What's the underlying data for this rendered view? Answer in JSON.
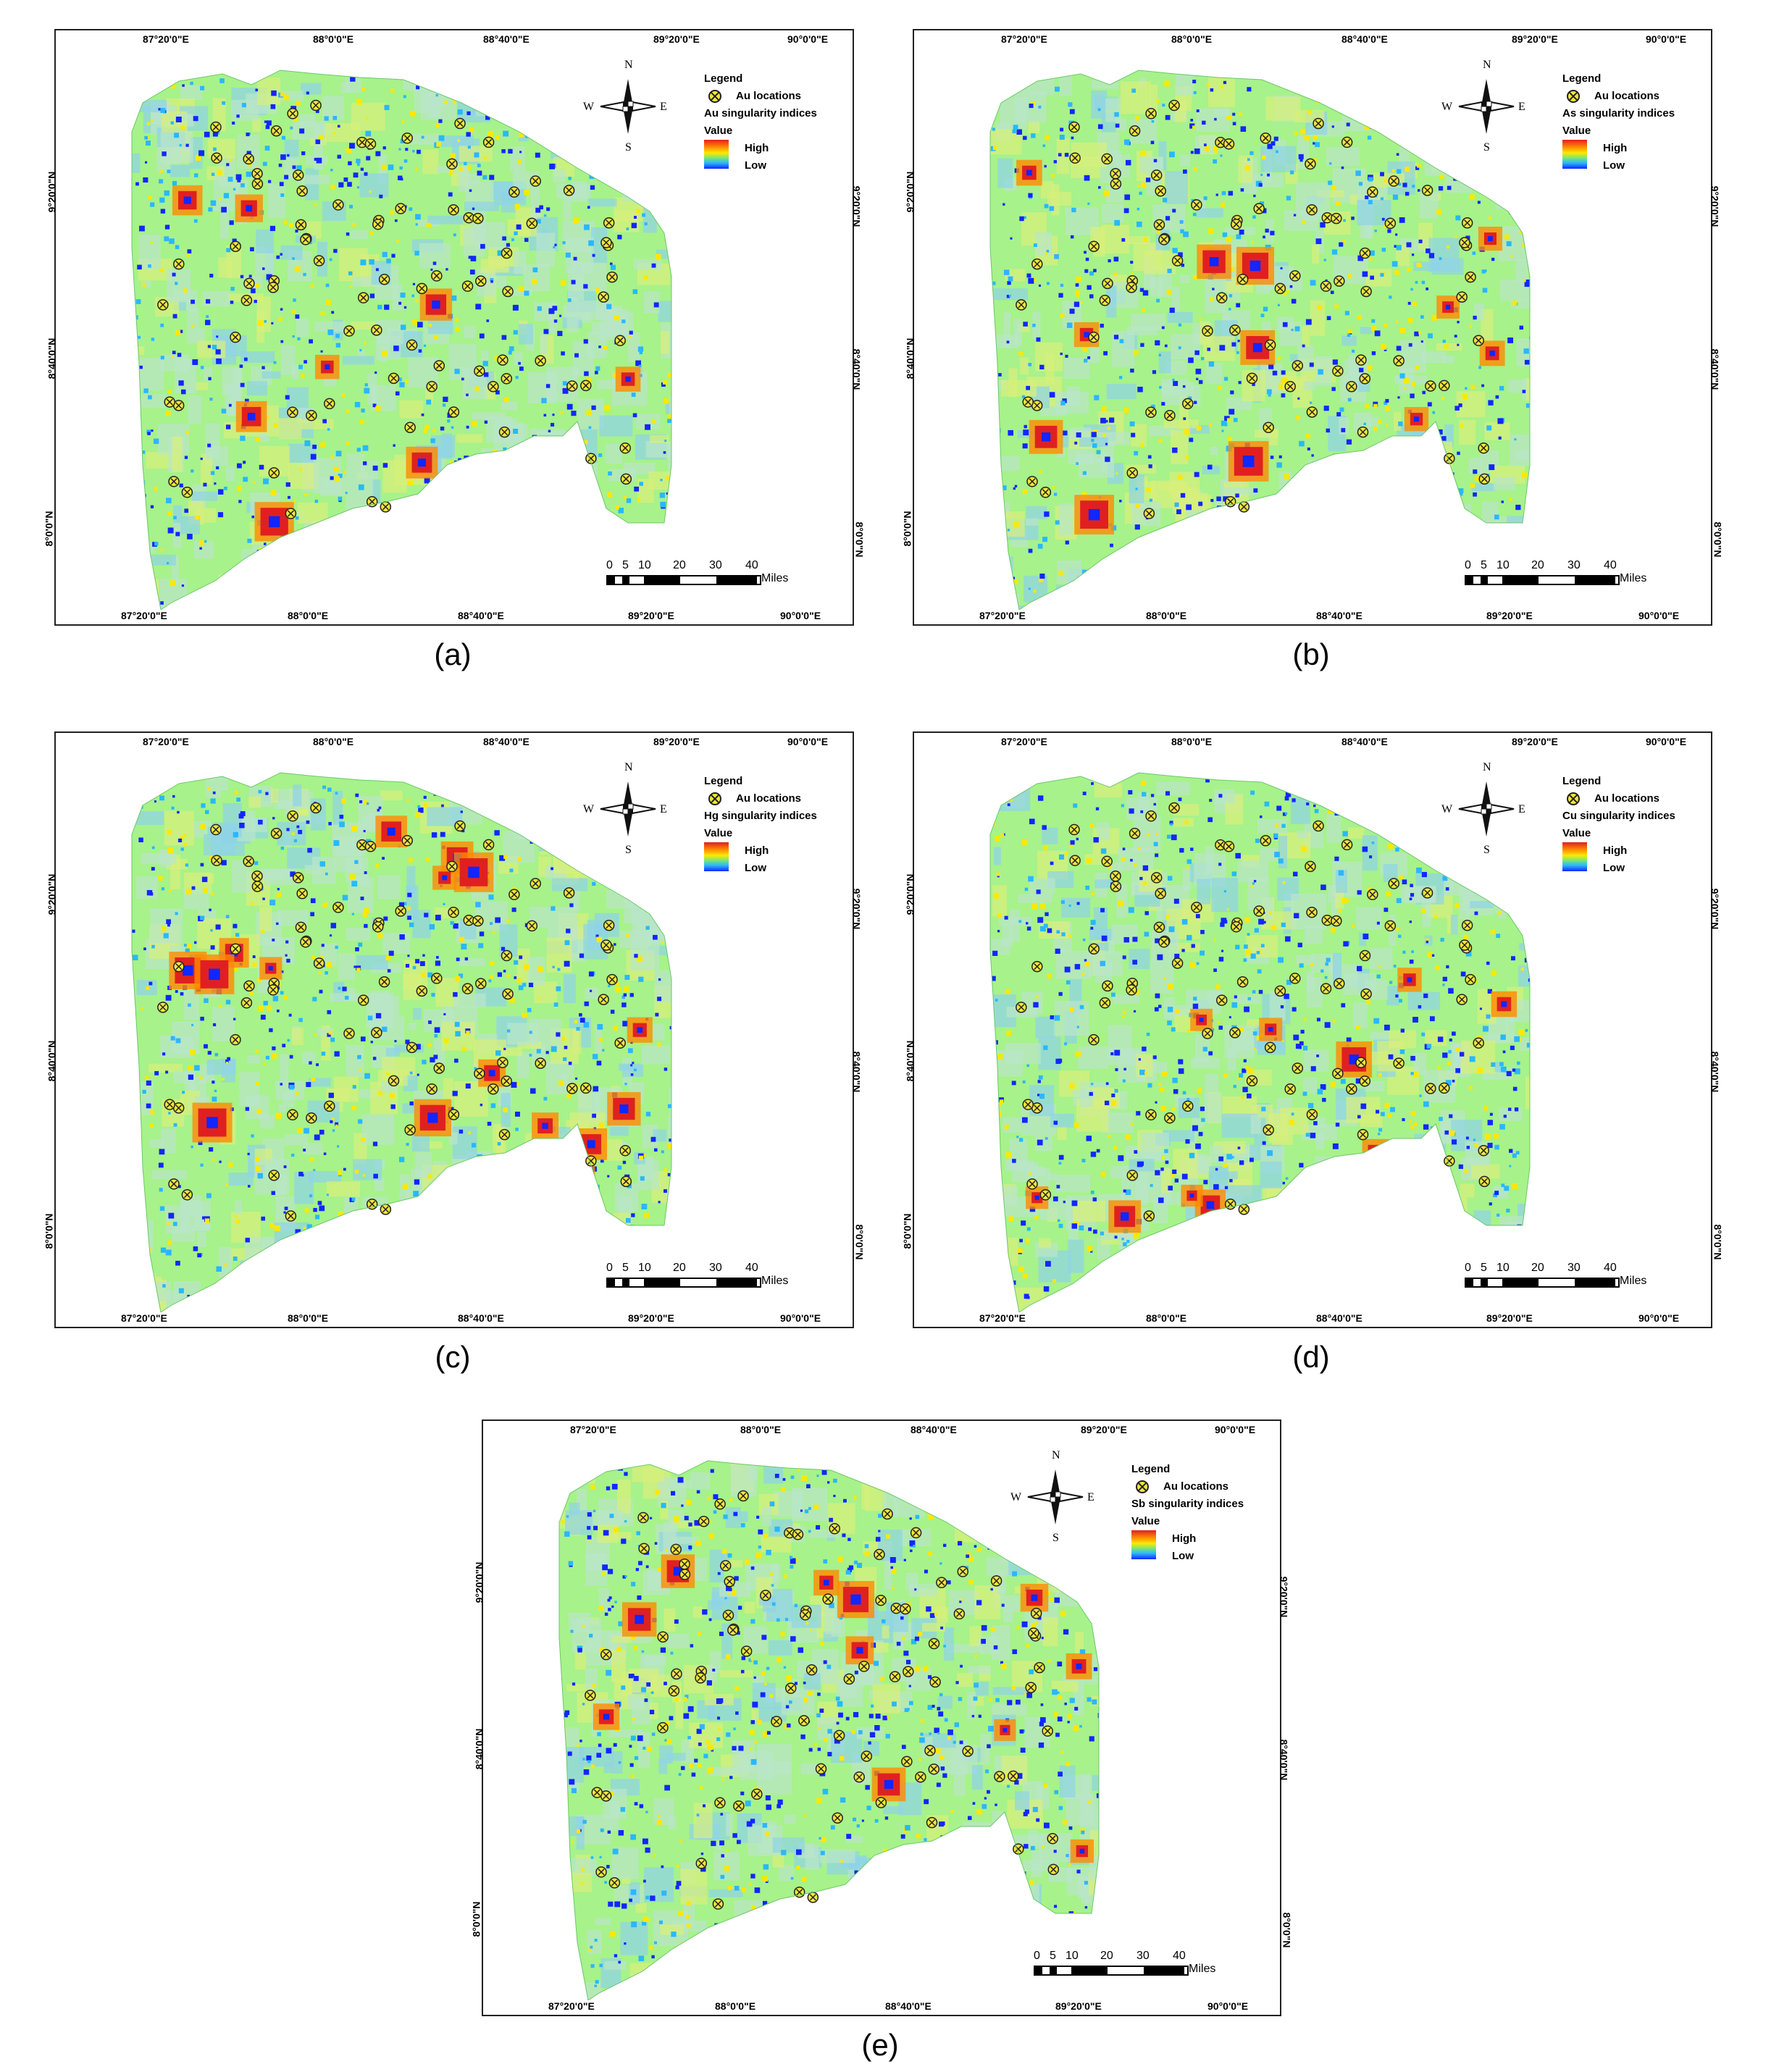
{
  "figure": {
    "panels": [
      {
        "id": "a",
        "caption": "(a)",
        "legend_layer": "Au singularity indices",
        "nudge": 0
      },
      {
        "id": "b",
        "caption": "(b)",
        "legend_layer": "As singularity indices",
        "nudge": 1
      },
      {
        "id": "c",
        "caption": "(c)",
        "legend_layer": "Hg singularity indices",
        "nudge": 2
      },
      {
        "id": "d",
        "caption": "(d)",
        "legend_layer": "Cu singularity indices",
        "nudge": 3
      },
      {
        "id": "e",
        "caption": "(e)",
        "legend_layer": "Sb singularity indices",
        "nudge": 4
      }
    ],
    "legend": {
      "title": "Legend",
      "points_label": "Au locations",
      "value_label": "Value",
      "high_label": "High",
      "low_label": "Low"
    },
    "compass": {
      "n": "N",
      "s": "S",
      "e": "E",
      "w": "W"
    },
    "longitude_ticks": [
      "87°20'0\"E",
      "88°0'0\"E",
      "88°40'0\"E",
      "89°20'0\"E",
      "90°0'0\"E"
    ],
    "latitude_ticks": [
      "9°20'0\"N",
      "8°40'0\"N",
      "8°0'0\"N"
    ],
    "scale": {
      "labels": [
        "0",
        "5",
        "10",
        "20",
        "30",
        "40"
      ],
      "unit": "Miles"
    },
    "colors": {
      "high": "#e02020",
      "mid_high": "#ff8a00",
      "mid": "#ffe800",
      "bg": "#a7f28a",
      "mid_low": "#29b7ff",
      "low": "#1226ff",
      "point": "#f1e63a"
    }
  }
}
